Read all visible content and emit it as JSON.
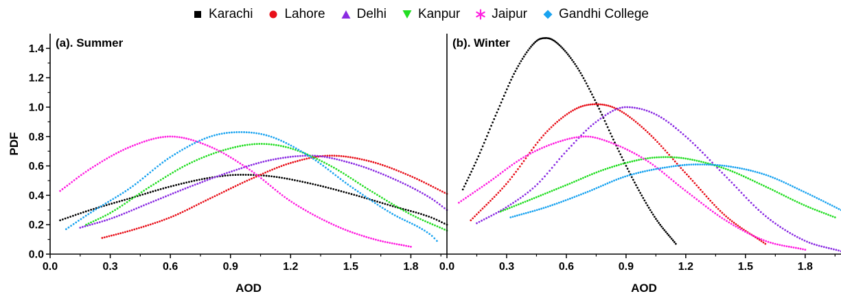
{
  "legend": [
    {
      "name": "Karachi",
      "color": "#000000",
      "marker": "square"
    },
    {
      "name": "Lahore",
      "color": "#e8101a",
      "marker": "circle"
    },
    {
      "name": "Delhi",
      "color": "#8a2be2",
      "marker": "triangle-up"
    },
    {
      "name": "Kanpur",
      "color": "#22dd22",
      "marker": "triangle-down"
    },
    {
      "name": "Jaipur",
      "color": "#ff1fe0",
      "marker": "asterisk"
    },
    {
      "name": "Gandhi College",
      "color": "#1aa3f0",
      "marker": "diamond"
    }
  ],
  "chart_data": [
    {
      "type": "scatter",
      "title": "(a). Summer",
      "xlabel": "AOD",
      "ylabel": "PDF",
      "xlim": [
        0.0,
        1.98
      ],
      "ylim": [
        0.0,
        1.5
      ],
      "xticks": [
        "0.0",
        "0.3",
        "0.6",
        "0.9",
        "1.2",
        "1.5",
        "1.8"
      ],
      "yticks": [
        "0.0",
        "0.2",
        "0.4",
        "0.6",
        "0.8",
        "1.0",
        "1.2",
        "1.4"
      ],
      "grid": false,
      "series": [
        {
          "name": "Karachi",
          "color": "#000000",
          "x": [
            0.05,
            0.2,
            0.4,
            0.6,
            0.8,
            0.95,
            1.1,
            1.3,
            1.5,
            1.7,
            1.9,
            1.98
          ],
          "y": [
            0.23,
            0.3,
            0.38,
            0.46,
            0.52,
            0.54,
            0.53,
            0.48,
            0.41,
            0.33,
            0.25,
            0.2
          ]
        },
        {
          "name": "Lahore",
          "color": "#e8101a",
          "x": [
            0.26,
            0.4,
            0.6,
            0.8,
            1.0,
            1.2,
            1.4,
            1.6,
            1.8,
            1.98
          ],
          "y": [
            0.11,
            0.16,
            0.25,
            0.38,
            0.51,
            0.62,
            0.67,
            0.63,
            0.53,
            0.41
          ]
        },
        {
          "name": "Delhi",
          "color": "#8a2be2",
          "x": [
            0.15,
            0.3,
            0.5,
            0.7,
            0.9,
            1.1,
            1.3,
            1.5,
            1.7,
            1.9,
            1.98
          ],
          "y": [
            0.18,
            0.24,
            0.35,
            0.46,
            0.56,
            0.64,
            0.67,
            0.62,
            0.52,
            0.38,
            0.3
          ]
        },
        {
          "name": "Kanpur",
          "color": "#22dd22",
          "x": [
            0.18,
            0.3,
            0.5,
            0.7,
            0.9,
            1.05,
            1.2,
            1.4,
            1.6,
            1.8,
            1.98
          ],
          "y": [
            0.2,
            0.28,
            0.46,
            0.62,
            0.72,
            0.75,
            0.72,
            0.6,
            0.43,
            0.27,
            0.16
          ]
        },
        {
          "name": "Jaipur",
          "color": "#ff1fe0",
          "x": [
            0.05,
            0.2,
            0.4,
            0.6,
            0.8,
            1.0,
            1.2,
            1.43,
            1.62,
            1.8
          ],
          "y": [
            0.43,
            0.58,
            0.73,
            0.8,
            0.73,
            0.57,
            0.36,
            0.19,
            0.1,
            0.05
          ]
        },
        {
          "name": "Gandhi College",
          "color": "#1aa3f0",
          "x": [
            0.08,
            0.2,
            0.4,
            0.6,
            0.8,
            0.95,
            1.1,
            1.3,
            1.5,
            1.7,
            1.9,
            1.93
          ],
          "y": [
            0.17,
            0.28,
            0.45,
            0.66,
            0.8,
            0.83,
            0.8,
            0.66,
            0.46,
            0.28,
            0.13,
            0.09
          ]
        }
      ]
    },
    {
      "type": "scatter",
      "title": "(b). Winter",
      "xlabel": "AOD",
      "ylabel": "",
      "xlim": [
        0.0,
        1.98
      ],
      "ylim": [
        0.0,
        1.5
      ],
      "xticks": [
        "0.0",
        "0.3",
        "0.6",
        "0.9",
        "1.2",
        "1.5",
        "1.8"
      ],
      "yticks": [],
      "grid": false,
      "series": [
        {
          "name": "Karachi",
          "color": "#000000",
          "x": [
            0.08,
            0.15,
            0.25,
            0.35,
            0.45,
            0.5,
            0.55,
            0.65,
            0.75,
            0.85,
            0.95,
            1.05,
            1.15
          ],
          "y": [
            0.44,
            0.64,
            0.96,
            1.26,
            1.45,
            1.47,
            1.44,
            1.28,
            1.03,
            0.74,
            0.47,
            0.24,
            0.07
          ]
        },
        {
          "name": "Lahore",
          "color": "#e8101a",
          "x": [
            0.12,
            0.3,
            0.5,
            0.65,
            0.75,
            0.85,
            1.0,
            1.2,
            1.4,
            1.6
          ],
          "y": [
            0.23,
            0.48,
            0.83,
            0.99,
            1.02,
            0.99,
            0.84,
            0.55,
            0.26,
            0.07
          ]
        },
        {
          "name": "Delhi",
          "color": "#8a2be2",
          "x": [
            0.15,
            0.3,
            0.45,
            0.6,
            0.75,
            0.9,
            1.05,
            1.2,
            1.4,
            1.6,
            1.8,
            1.98
          ],
          "y": [
            0.21,
            0.32,
            0.47,
            0.7,
            0.9,
            1.0,
            0.95,
            0.8,
            0.53,
            0.26,
            0.09,
            0.02
          ]
        },
        {
          "name": "Kanpur",
          "color": "#22dd22",
          "x": [
            0.27,
            0.4,
            0.6,
            0.8,
            1.0,
            1.1,
            1.2,
            1.4,
            1.6,
            1.8,
            1.95
          ],
          "y": [
            0.29,
            0.36,
            0.47,
            0.58,
            0.65,
            0.66,
            0.65,
            0.58,
            0.46,
            0.33,
            0.25
          ]
        },
        {
          "name": "Jaipur",
          "color": "#ff1fe0",
          "x": [
            0.06,
            0.2,
            0.4,
            0.6,
            0.7,
            0.8,
            1.0,
            1.2,
            1.4,
            1.6,
            1.8
          ],
          "y": [
            0.35,
            0.48,
            0.67,
            0.78,
            0.8,
            0.77,
            0.64,
            0.43,
            0.23,
            0.09,
            0.03
          ]
        },
        {
          "name": "Gandhi College",
          "color": "#1aa3f0",
          "x": [
            0.32,
            0.5,
            0.7,
            0.9,
            1.1,
            1.25,
            1.4,
            1.6,
            1.8,
            1.98
          ],
          "y": [
            0.25,
            0.32,
            0.42,
            0.53,
            0.59,
            0.61,
            0.6,
            0.54,
            0.42,
            0.3
          ]
        }
      ]
    }
  ]
}
